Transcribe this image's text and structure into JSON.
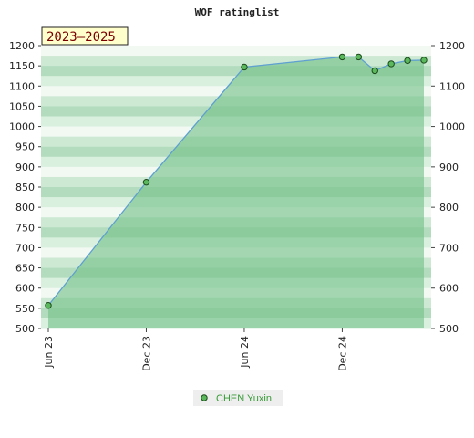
{
  "chart_data": {
    "type": "area",
    "title": "WOF ratinglist",
    "badge": "2023–2025",
    "xlabel": "",
    "ylabel": "",
    "ylim": [
      500,
      1200
    ],
    "yticks": [
      500,
      550,
      600,
      650,
      700,
      750,
      800,
      850,
      900,
      950,
      1000,
      1050,
      1100,
      1150,
      1200
    ],
    "yticks_right": [
      500,
      600,
      700,
      800,
      900,
      1000,
      1100,
      1200
    ],
    "x_start": "2023-06",
    "x_end": "2025-05",
    "xticks": [
      {
        "date": "2023-06",
        "label": "Jun 23"
      },
      {
        "date": "2023-12",
        "label": "Dec 23"
      },
      {
        "date": "2024-06",
        "label": "Jun 24"
      },
      {
        "date": "2024-12",
        "label": "Dec 24"
      }
    ],
    "series": [
      {
        "name": "CHEN Yuxin",
        "points": [
          {
            "x": "2023-06",
            "y": 557
          },
          {
            "x": "2023-12",
            "y": 862
          },
          {
            "x": "2024-06",
            "y": 1147
          },
          {
            "x": "2024-12",
            "y": 1172
          },
          {
            "x": "2025-01",
            "y": 1172
          },
          {
            "x": "2025-02",
            "y": 1138
          },
          {
            "x": "2025-03",
            "y": 1155
          },
          {
            "x": "2025-04",
            "y": 1163
          },
          {
            "x": "2025-05",
            "y": 1164
          }
        ]
      }
    ],
    "legend_placement": "bottom-center",
    "colors": {
      "line": "#5fa0d0",
      "fill": "#6fbf86",
      "marker": "#5cb85c",
      "marker_edge": "#1a4a1a",
      "band_dark": "#a8d8b4",
      "band_light": "#f2f9f3",
      "badge_bg": "#ffffcc",
      "legend_bg": "#eeeeee"
    }
  }
}
